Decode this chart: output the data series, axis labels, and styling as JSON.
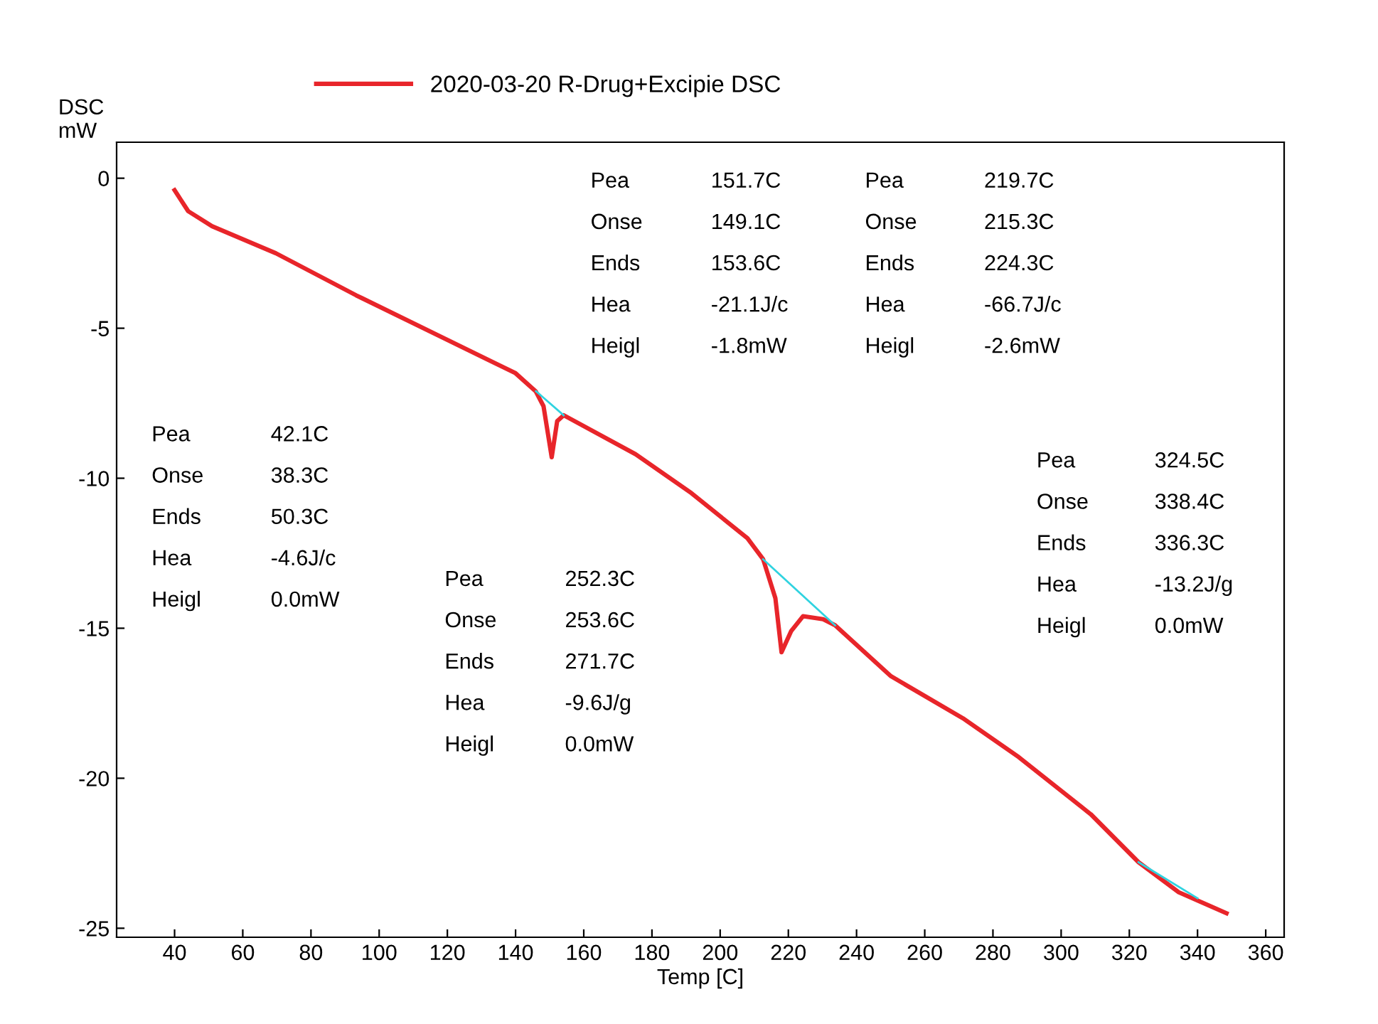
{
  "chart_data": {
    "type": "line",
    "xlabel": "Temp [C]",
    "ylabel": "DSC\nmW",
    "x": [
      40,
      44,
      51,
      69.7,
      93.2,
      116.6,
      140,
      145.9,
      148.2,
      150.6,
      152.2,
      154.1,
      175.2,
      191.6,
      208,
      212.6,
      216.2,
      218,
      220.8,
      224.3,
      230.2,
      233.7,
      250.1,
      271.2,
      287.6,
      308.7,
      322.7,
      334.5,
      348.5
    ],
    "series": [
      {
        "name": "2020-03-20 R-Drug+Excipie DSC",
        "color": "#e8252a",
        "values": [
          -0.4,
          -1.1,
          -1.6,
          -2.5,
          -3.9,
          -5.2,
          -6.5,
          -7.1,
          -7.6,
          -9.3,
          -8.1,
          -7.9,
          -9.2,
          -10.5,
          -12.0,
          -12.7,
          -14.0,
          -15.8,
          -15.1,
          -14.6,
          -14.7,
          -14.9,
          -16.6,
          -18.0,
          -19.3,
          -21.2,
          -22.8,
          -23.8,
          -24.5
        ]
      },
      {
        "type": "line",
        "color": "#2fd3e0",
        "x": [
          146,
          154.1
        ],
        "values": [
          -7.1,
          -7.9
        ]
      },
      {
        "type": "line",
        "color": "#2fd3e0",
        "x": [
          212.6,
          233.7
        ],
        "values": [
          -12.7,
          -14.9
        ]
      },
      {
        "type": "line",
        "color": "#2fd3e0",
        "x": [
          322.7,
          340
        ],
        "values": [
          -22.8,
          -24.0
        ]
      }
    ],
    "xlim": [
      23,
      365.4
    ],
    "ylim": [
      -25.3,
      1.2
    ],
    "xticks": [
      40,
      60,
      80,
      100,
      120,
      140,
      160,
      180,
      200,
      220,
      240,
      260,
      280,
      300,
      320,
      340,
      360
    ],
    "yticks": [
      -25,
      -20,
      -15,
      -10,
      -5,
      0
    ],
    "grid": false,
    "legend": "top",
    "annotations": [
      "Pea 151.7C\nOnse 149.1C\nEnds 153.6C\nHea -21.1J/c\nHeigl -1.8mW",
      "Pea 219.7C\nOnse 215.3C\nEnds 224.3C\nHea -66.7J/c\nHeigl -2.6mW",
      "Pea 42.1C\nOnse 38.3C\nEnds 50.3C\nHea -4.6J/c\nHeigl 0.0mW",
      "Pea 252.3C\nOnse 253.6C\nEnds 271.7C\nHea -9.6J/g\nHeigl 0.0mW",
      "Pea 324.5C\nOnse 338.4C\nEnds 336.3C\nHea -13.2J/g\nHeigl 0.0mW"
    ]
  }
}
